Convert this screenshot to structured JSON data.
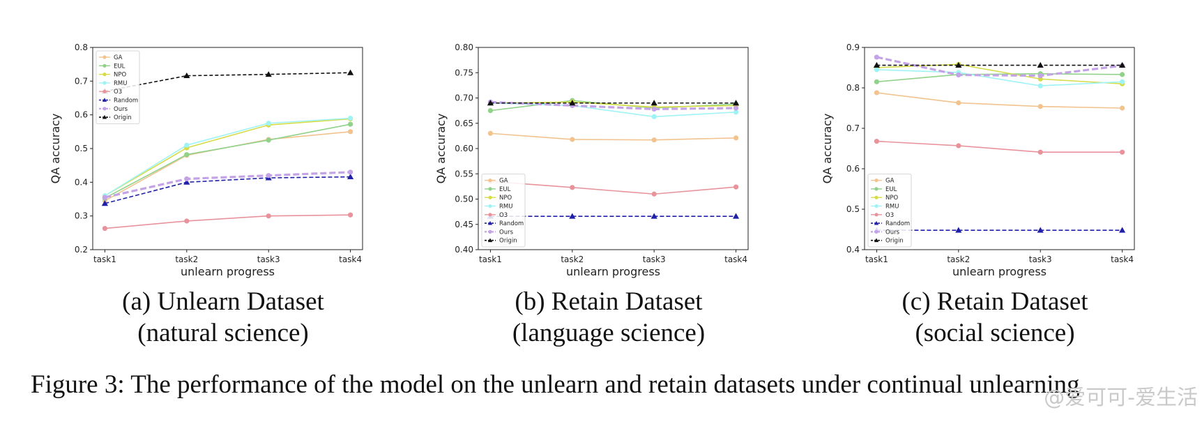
{
  "figure_caption": "Figure 3: The performance of the model on the unlearn and retain datasets under continual unlearning",
  "watermark": "@爱可可-爱生活",
  "colors": {
    "GA": "#f2c38e",
    "EUL": "#90d28a",
    "NPO": "#d6dc48",
    "RMU": "#9ff3f5",
    "O3": "#e8939c",
    "Random": "#1f1fa8",
    "Ours": "#c3a3e6",
    "Origin": "#111111"
  },
  "chart_data": [
    {
      "type": "line",
      "caption_line1": "(a) Unlearn Dataset",
      "caption_line2": "(natural science)",
      "xlabel": "unlearn progress",
      "ylabel": "QA accuracy",
      "categories": [
        "task1",
        "task2",
        "task3",
        "task4"
      ],
      "ylim": [
        0.2,
        0.8
      ],
      "yticks": [
        "0.2",
        "0.3",
        "0.4",
        "0.5",
        "0.6",
        "0.7",
        "0.8"
      ],
      "legend_position": "upper-left",
      "series": [
        {
          "name": "GA",
          "values": [
            0.345,
            0.48,
            0.527,
            0.55
          ]
        },
        {
          "name": "EUL",
          "values": [
            0.353,
            0.482,
            0.525,
            0.572
          ]
        },
        {
          "name": "NPO",
          "values": [
            0.36,
            0.502,
            0.57,
            0.588
          ]
        },
        {
          "name": "RMU",
          "values": [
            0.36,
            0.51,
            0.575,
            0.59
          ]
        },
        {
          "name": "O3",
          "values": [
            0.263,
            0.285,
            0.3,
            0.303
          ]
        },
        {
          "name": "Random",
          "values": [
            0.337,
            0.4,
            0.413,
            0.416
          ]
        },
        {
          "name": "Ours",
          "values": [
            0.355,
            0.41,
            0.42,
            0.43
          ]
        },
        {
          "name": "Origin",
          "values": [
            0.67,
            0.716,
            0.72,
            0.725
          ]
        }
      ]
    },
    {
      "type": "line",
      "caption_line1": "(b) Retain Dataset",
      "caption_line2": "(language science)",
      "xlabel": "unlearn progress",
      "ylabel": "QA accuracy",
      "categories": [
        "task1",
        "task2",
        "task3",
        "task4"
      ],
      "ylim": [
        0.4,
        0.8
      ],
      "yticks": [
        "0.40",
        "0.45",
        "0.50",
        "0.55",
        "0.60",
        "0.65",
        "0.70",
        "0.75",
        "0.80"
      ],
      "legend_position": "lower-left",
      "series": [
        {
          "name": "GA",
          "values": [
            0.63,
            0.618,
            0.617,
            0.621
          ]
        },
        {
          "name": "EUL",
          "values": [
            0.675,
            0.695,
            0.68,
            0.688
          ]
        },
        {
          "name": "NPO",
          "values": [
            0.69,
            0.692,
            0.682,
            0.685
          ]
        },
        {
          "name": "RMU",
          "values": [
            0.69,
            0.685,
            0.663,
            0.672
          ]
        },
        {
          "name": "O3",
          "values": [
            0.535,
            0.523,
            0.51,
            0.524
          ]
        },
        {
          "name": "Random",
          "values": [
            0.466,
            0.466,
            0.466,
            0.466
          ]
        },
        {
          "name": "Ours",
          "values": [
            0.692,
            0.685,
            0.678,
            0.68
          ]
        },
        {
          "name": "Origin",
          "values": [
            0.69,
            0.69,
            0.69,
            0.69
          ]
        }
      ]
    },
    {
      "type": "line",
      "caption_line1": "(c) Retain Dataset",
      "caption_line2": "(social science)",
      "xlabel": "unlearn progress",
      "ylabel": "QA accuracy",
      "categories": [
        "task1",
        "task2",
        "task3",
        "task4"
      ],
      "ylim": [
        0.4,
        0.9
      ],
      "yticks": [
        "0.4",
        "0.5",
        "0.6",
        "0.7",
        "0.8",
        "0.9"
      ],
      "legend_position": "lower-left",
      "series": [
        {
          "name": "GA",
          "values": [
            0.788,
            0.763,
            0.754,
            0.75
          ]
        },
        {
          "name": "EUL",
          "values": [
            0.815,
            0.833,
            0.835,
            0.833
          ]
        },
        {
          "name": "NPO",
          "values": [
            0.85,
            0.858,
            0.822,
            0.81
          ]
        },
        {
          "name": "RMU",
          "values": [
            0.845,
            0.838,
            0.805,
            0.815
          ]
        },
        {
          "name": "O3",
          "values": [
            0.668,
            0.657,
            0.641,
            0.641
          ]
        },
        {
          "name": "Random",
          "values": [
            0.448,
            0.448,
            0.448,
            0.448
          ]
        },
        {
          "name": "Ours",
          "values": [
            0.876,
            0.832,
            0.83,
            0.855
          ]
        },
        {
          "name": "Origin",
          "values": [
            0.856,
            0.856,
            0.856,
            0.856
          ]
        }
      ]
    }
  ]
}
